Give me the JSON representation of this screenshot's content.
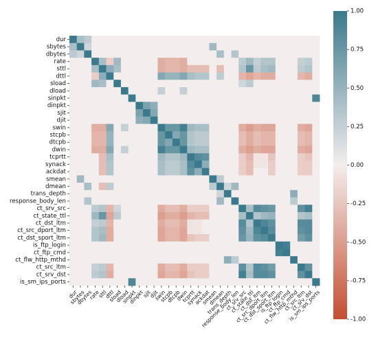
{
  "chart_data": {
    "type": "heatmap",
    "title": "",
    "xlabel": "",
    "ylabel": "",
    "variables": [
      "dur",
      "sbytes",
      "dbytes",
      "rate",
      "sttl",
      "dttl",
      "sload",
      "dload",
      "sinpkt",
      "dinpkt",
      "sjit",
      "djit",
      "swin",
      "stcpb",
      "dtcpb",
      "dwin",
      "tcprtt",
      "synack",
      "ackdat",
      "smean",
      "dmean",
      "trans_depth",
      "response_body_len",
      "ct_srv_src",
      "ct_state_ttl",
      "ct_dst_ltm",
      "ct_src_dport_ltm",
      "ct_dst_sport_ltm",
      "is_ftp_login",
      "ct_ftp_cmd",
      "ct_flw_http_mthd",
      "ct_src_ltm",
      "ct_srv_dst",
      "is_sm_ips_ports"
    ],
    "x_tick_labels": [
      "dur",
      "sbytes",
      "dbytes",
      "rate",
      "sttl",
      "dttl",
      "sload",
      "dload",
      "sinpkt",
      "dinpkt",
      "sjit",
      "djit",
      "swin",
      "stcpb",
      "dtcpb",
      "dwin",
      "tcprtt",
      "synack",
      "ackdat",
      "smean",
      "dmean",
      "trans_depth",
      "response_body_len",
      "ct_srv_src",
      "ct_state_ttl",
      "ct_dst_ltm",
      "ct_src_dport_ltm",
      "ct_dst_sport_ltm",
      "is_ftp_login",
      "ct_ftp_cmd",
      "ct_flw_http_mthd",
      "ct_src_ltm",
      "ct_srv_dst",
      "is_sm_ips_ports"
    ],
    "colorbar": {
      "vmin": -1.0,
      "vmax": 1.0,
      "ticks": [
        "1.00",
        "0.75",
        "0.50",
        "0.25",
        "0.00",
        "-0.25",
        "-0.50",
        "-0.75",
        "-1.00"
      ],
      "low_color": "#c44e30",
      "mid_color": "#f3eded",
      "high_color": "#3a7a8c"
    },
    "correlations": [
      {
        "i": 0,
        "j": 1,
        "v": 0.4
      },
      {
        "i": 0,
        "j": 2,
        "v": 0.3
      },
      {
        "i": 1,
        "j": 2,
        "v": 0.2
      },
      {
        "i": 1,
        "j": 19,
        "v": 0.45
      },
      {
        "i": 2,
        "j": 20,
        "v": 0.4
      },
      {
        "i": 2,
        "j": 22,
        "v": 0.35
      },
      {
        "i": 3,
        "j": 4,
        "v": 0.4
      },
      {
        "i": 3,
        "j": 5,
        "v": -0.2
      },
      {
        "i": 3,
        "j": 6,
        "v": 0.45
      },
      {
        "i": 3,
        "j": 12,
        "v": -0.4
      },
      {
        "i": 3,
        "j": 13,
        "v": -0.35
      },
      {
        "i": 3,
        "j": 14,
        "v": -0.35
      },
      {
        "i": 3,
        "j": 15,
        "v": -0.4
      },
      {
        "i": 3,
        "j": 23,
        "v": 0.3
      },
      {
        "i": 3,
        "j": 24,
        "v": 0.45
      },
      {
        "i": 3,
        "j": 25,
        "v": 0.25
      },
      {
        "i": 3,
        "j": 26,
        "v": 0.35
      },
      {
        "i": 3,
        "j": 27,
        "v": 0.35
      },
      {
        "i": 3,
        "j": 31,
        "v": 0.25
      },
      {
        "i": 3,
        "j": 32,
        "v": 0.3
      },
      {
        "i": 4,
        "j": 5,
        "v": 0.55
      },
      {
        "i": 4,
        "j": 6,
        "v": 0.4
      },
      {
        "i": 4,
        "j": 12,
        "v": -0.4
      },
      {
        "i": 4,
        "j": 13,
        "v": -0.35
      },
      {
        "i": 4,
        "j": 14,
        "v": -0.35
      },
      {
        "i": 4,
        "j": 15,
        "v": -0.4
      },
      {
        "i": 4,
        "j": 16,
        "v": -0.3
      },
      {
        "i": 4,
        "j": 17,
        "v": -0.3
      },
      {
        "i": 4,
        "j": 18,
        "v": -0.3
      },
      {
        "i": 4,
        "j": 20,
        "v": -0.3
      },
      {
        "i": 4,
        "j": 23,
        "v": 0.35
      },
      {
        "i": 4,
        "j": 24,
        "v": 0.75
      },
      {
        "i": 4,
        "j": 25,
        "v": 0.3
      },
      {
        "i": 4,
        "j": 26,
        "v": 0.4
      },
      {
        "i": 4,
        "j": 27,
        "v": 0.45
      },
      {
        "i": 4,
        "j": 31,
        "v": 0.3
      },
      {
        "i": 4,
        "j": 32,
        "v": 0.35
      },
      {
        "i": 5,
        "j": 12,
        "v": 0.6
      },
      {
        "i": 5,
        "j": 13,
        "v": 0.5
      },
      {
        "i": 5,
        "j": 14,
        "v": 0.5
      },
      {
        "i": 5,
        "j": 15,
        "v": 0.6
      },
      {
        "i": 5,
        "j": 16,
        "v": 0.4
      },
      {
        "i": 5,
        "j": 17,
        "v": 0.35
      },
      {
        "i": 5,
        "j": 18,
        "v": 0.35
      },
      {
        "i": 5,
        "j": 20,
        "v": 0.3
      },
      {
        "i": 5,
        "j": 23,
        "v": -0.35
      },
      {
        "i": 5,
        "j": 24,
        "v": -0.45
      },
      {
        "i": 5,
        "j": 25,
        "v": -0.35
      },
      {
        "i": 5,
        "j": 26,
        "v": -0.4
      },
      {
        "i": 5,
        "j": 27,
        "v": -0.4
      },
      {
        "i": 5,
        "j": 31,
        "v": -0.35
      },
      {
        "i": 5,
        "j": 32,
        "v": -0.4
      },
      {
        "i": 6,
        "j": 23,
        "v": 0.2
      },
      {
        "i": 6,
        "j": 24,
        "v": 0.3
      },
      {
        "i": 7,
        "j": 12,
        "v": 0.25
      },
      {
        "i": 7,
        "j": 15,
        "v": 0.25
      },
      {
        "i": 8,
        "j": 33,
        "v": 0.9
      },
      {
        "i": 9,
        "j": 10,
        "v": 0.65
      },
      {
        "i": 9,
        "j": 11,
        "v": 0.55
      },
      {
        "i": 10,
        "j": 11,
        "v": 0.6
      },
      {
        "i": 12,
        "j": 13,
        "v": 0.75
      },
      {
        "i": 12,
        "j": 14,
        "v": 0.75
      },
      {
        "i": 12,
        "j": 15,
        "v": 0.95
      },
      {
        "i": 12,
        "j": 16,
        "v": 0.45
      },
      {
        "i": 12,
        "j": 17,
        "v": 0.4
      },
      {
        "i": 12,
        "j": 18,
        "v": 0.4
      },
      {
        "i": 12,
        "j": 23,
        "v": -0.4
      },
      {
        "i": 12,
        "j": 24,
        "v": -0.5
      },
      {
        "i": 12,
        "j": 25,
        "v": -0.4
      },
      {
        "i": 12,
        "j": 26,
        "v": -0.45
      },
      {
        "i": 12,
        "j": 27,
        "v": -0.45
      },
      {
        "i": 12,
        "j": 31,
        "v": -0.4
      },
      {
        "i": 12,
        "j": 32,
        "v": -0.45
      },
      {
        "i": 13,
        "j": 14,
        "v": 0.6
      },
      {
        "i": 13,
        "j": 15,
        "v": 0.75
      },
      {
        "i": 13,
        "j": 16,
        "v": 0.35
      },
      {
        "i": 13,
        "j": 17,
        "v": 0.3
      },
      {
        "i": 13,
        "j": 18,
        "v": 0.3
      },
      {
        "i": 13,
        "j": 23,
        "v": -0.3
      },
      {
        "i": 13,
        "j": 24,
        "v": -0.4
      },
      {
        "i": 13,
        "j": 25,
        "v": -0.3
      },
      {
        "i": 13,
        "j": 26,
        "v": -0.35
      },
      {
        "i": 13,
        "j": 27,
        "v": -0.35
      },
      {
        "i": 13,
        "j": 31,
        "v": -0.3
      },
      {
        "i": 13,
        "j": 32,
        "v": -0.35
      },
      {
        "i": 14,
        "j": 15,
        "v": 0.75
      },
      {
        "i": 14,
        "j": 16,
        "v": 0.35
      },
      {
        "i": 14,
        "j": 17,
        "v": 0.3
      },
      {
        "i": 14,
        "j": 18,
        "v": 0.3
      },
      {
        "i": 14,
        "j": 23,
        "v": -0.3
      },
      {
        "i": 14,
        "j": 24,
        "v": -0.4
      },
      {
        "i": 14,
        "j": 25,
        "v": -0.3
      },
      {
        "i": 14,
        "j": 26,
        "v": -0.35
      },
      {
        "i": 14,
        "j": 27,
        "v": -0.35
      },
      {
        "i": 14,
        "j": 31,
        "v": -0.3
      },
      {
        "i": 14,
        "j": 32,
        "v": -0.35
      },
      {
        "i": 15,
        "j": 16,
        "v": 0.45
      },
      {
        "i": 15,
        "j": 17,
        "v": 0.4
      },
      {
        "i": 15,
        "j": 18,
        "v": 0.4
      },
      {
        "i": 15,
        "j": 23,
        "v": -0.4
      },
      {
        "i": 15,
        "j": 24,
        "v": -0.5
      },
      {
        "i": 15,
        "j": 25,
        "v": -0.4
      },
      {
        "i": 15,
        "j": 26,
        "v": -0.45
      },
      {
        "i": 15,
        "j": 27,
        "v": -0.45
      },
      {
        "i": 15,
        "j": 31,
        "v": -0.4
      },
      {
        "i": 15,
        "j": 32,
        "v": -0.45
      },
      {
        "i": 16,
        "j": 17,
        "v": 0.85
      },
      {
        "i": 16,
        "j": 18,
        "v": 0.8
      },
      {
        "i": 16,
        "j": 23,
        "v": -0.2
      },
      {
        "i": 16,
        "j": 24,
        "v": -0.35
      },
      {
        "i": 16,
        "j": 25,
        "v": -0.05
      },
      {
        "i": 16,
        "j": 26,
        "v": -0.05
      },
      {
        "i": 16,
        "j": 27,
        "v": -0.25
      },
      {
        "i": 16,
        "j": 31,
        "v": -0.2
      },
      {
        "i": 16,
        "j": 32,
        "v": -0.25
      },
      {
        "i": 17,
        "j": 18,
        "v": 0.55
      },
      {
        "i": 17,
        "j": 23,
        "v": -0.2
      },
      {
        "i": 17,
        "j": 24,
        "v": -0.3
      },
      {
        "i": 17,
        "j": 25,
        "v": -0.05
      },
      {
        "i": 17,
        "j": 26,
        "v": -0.05
      },
      {
        "i": 17,
        "j": 27,
        "v": -0.2
      },
      {
        "i": 17,
        "j": 31,
        "v": -0.2
      },
      {
        "i": 17,
        "j": 32,
        "v": -0.2
      },
      {
        "i": 18,
        "j": 23,
        "v": -0.2
      },
      {
        "i": 18,
        "j": 24,
        "v": -0.3
      },
      {
        "i": 18,
        "j": 27,
        "v": -0.2
      },
      {
        "i": 18,
        "j": 31,
        "v": -0.2
      },
      {
        "i": 18,
        "j": 32,
        "v": -0.2
      },
      {
        "i": 19,
        "j": 20,
        "v": 0.3
      },
      {
        "i": 20,
        "j": 22,
        "v": 0.45
      },
      {
        "i": 20,
        "j": 21,
        "v": 0.2
      },
      {
        "i": 21,
        "j": 30,
        "v": 0.55
      },
      {
        "i": 22,
        "j": 30,
        "v": 0.3
      },
      {
        "i": 23,
        "j": 24,
        "v": 0.4
      },
      {
        "i": 23,
        "j": 25,
        "v": 0.85
      },
      {
        "i": 23,
        "j": 26,
        "v": 0.8
      },
      {
        "i": 23,
        "j": 27,
        "v": 0.75
      },
      {
        "i": 23,
        "j": 31,
        "v": 0.8
      },
      {
        "i": 23,
        "j": 32,
        "v": 0.95
      },
      {
        "i": 24,
        "j": 25,
        "v": 0.35
      },
      {
        "i": 24,
        "j": 26,
        "v": 0.45
      },
      {
        "i": 24,
        "j": 27,
        "v": 0.5
      },
      {
        "i": 24,
        "j": 31,
        "v": 0.35
      },
      {
        "i": 24,
        "j": 32,
        "v": 0.4
      },
      {
        "i": 25,
        "j": 26,
        "v": 0.9
      },
      {
        "i": 25,
        "j": 27,
        "v": 0.8
      },
      {
        "i": 25,
        "j": 31,
        "v": 0.85
      },
      {
        "i": 25,
        "j": 32,
        "v": 0.85
      },
      {
        "i": 26,
        "j": 27,
        "v": 0.85
      },
      {
        "i": 26,
        "j": 31,
        "v": 0.8
      },
      {
        "i": 26,
        "j": 32,
        "v": 0.85
      },
      {
        "i": 27,
        "j": 31,
        "v": 0.7
      },
      {
        "i": 27,
        "j": 32,
        "v": 0.8
      },
      {
        "i": 28,
        "j": 29,
        "v": 0.95
      },
      {
        "i": 31,
        "j": 32,
        "v": 0.8
      }
    ]
  }
}
